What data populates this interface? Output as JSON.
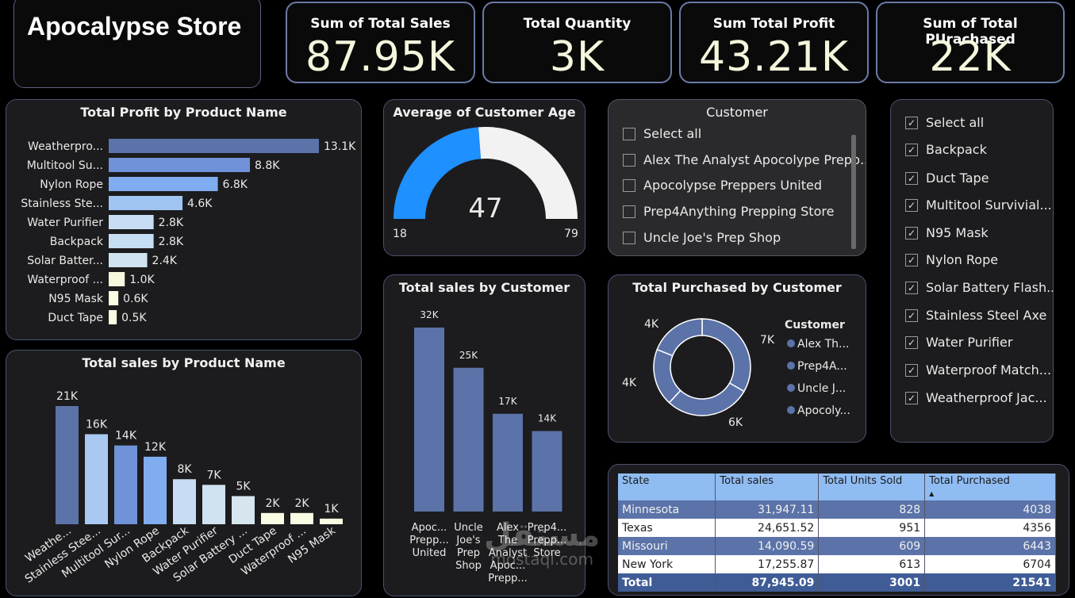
{
  "title": "Apocalypse Store",
  "kpis": [
    {
      "label": "Sum of Total Sales",
      "value": "87.95K"
    },
    {
      "label": "Total Quantity",
      "value": "3K"
    },
    {
      "label": "Sum Total Profit",
      "value": "43.21K"
    },
    {
      "label": "Sum of Total PUrachased",
      "value": "22K"
    }
  ],
  "colors": {
    "accent": "#1e90ff",
    "bar": "#5b73a8",
    "card_bg": "#1c1c1e",
    "border": "#4a5170"
  },
  "profit_panel": {
    "title": "Total Profit by Product Name"
  },
  "sales_product_panel": {
    "title": "Total sales by Product Name"
  },
  "age_panel": {
    "title": "Average of Customer Age"
  },
  "sales_customer_panel": {
    "title": "Total sales by Customer"
  },
  "purchased_panel": {
    "title": "Total Purchased by Customer"
  },
  "customer_slicer": {
    "title": "Customer",
    "items": [
      "Select all",
      "Alex The Analyst Apocolype Prepp...",
      "Apocolypse Preppers United",
      "Prep4Anything Prepping Store",
      "Uncle Joe's Prep Shop"
    ]
  },
  "product_slicer": {
    "items": [
      "Select all",
      "Backpack",
      "Duct Tape",
      "Multitool Survivial...",
      "N95 Mask",
      "Nylon Rope",
      "Solar Battery Flash...",
      "Stainless Steel Axe",
      "Water Purifier",
      "Waterproof Match...",
      "Weatherproof Jac..."
    ]
  },
  "chart_data": [
    {
      "type": "bar",
      "orientation": "horizontal",
      "title": "Total Profit by Product Name",
      "categories": [
        "Weatherpro...",
        "Multitool Su...",
        "Nylon Rope",
        "Stainless Ste...",
        "Water Purifier",
        "Backpack",
        "Solar Batter...",
        "Waterproof ...",
        "N95 Mask",
        "Duct Tape"
      ],
      "values": [
        13.1,
        8.8,
        6.8,
        4.6,
        2.8,
        2.8,
        2.4,
        1.0,
        0.6,
        0.5
      ],
      "labels": [
        "13.1K",
        "8.8K",
        "6.8K",
        "4.6K",
        "2.8K",
        "2.8K",
        "2.4K",
        "1.0K",
        "0.6K",
        "0.5K"
      ],
      "colors": [
        "#5b73a8",
        "#6f92d8",
        "#80adf0",
        "#9fc4f2",
        "#c6ddf3",
        "#c6ddf3",
        "#cfe3f1",
        "#f7f9df",
        "#fbfce4",
        "#fbfce4"
      ]
    },
    {
      "type": "bar",
      "title": "Total sales by Product Name",
      "categories": [
        "Weathe...",
        "Stainless Stee...",
        "Multitool Sur...",
        "Nylon Rope",
        "Backpack",
        "Water Purifier",
        "Solar Battery ...",
        "Duct Tape",
        "Waterproof ...",
        "N95 Mask"
      ],
      "values": [
        21,
        16,
        14,
        12,
        8,
        7,
        5,
        2,
        2,
        1
      ],
      "labels": [
        "21K",
        "16K",
        "14K",
        "12K",
        "8K",
        "7K",
        "5K",
        "2K",
        "2K",
        "1K"
      ],
      "colors": [
        "#5b73a8",
        "#a9c9f3",
        "#6f92d8",
        "#80adf0",
        "#c6ddf3",
        "#cfe3f1",
        "#d6e6ee",
        "#fbfce4",
        "#fbfce4",
        "#fbfce4"
      ]
    },
    {
      "type": "gauge",
      "title": "Average of Customer Age",
      "value": 47,
      "min": 18,
      "max": 79,
      "value_label": "47",
      "min_label": "18",
      "max_label": "79"
    },
    {
      "type": "bar",
      "title": "Total sales by Customer",
      "categories": [
        "Apoc... Prepp... United",
        "Uncle Joe's Prep Shop",
        "Alex The Analyst Apoc... Prepp...",
        "Prep4... Prepp... Store"
      ],
      "category_lines": [
        [
          "Apoc...",
          "Prepp...",
          "United"
        ],
        [
          "Uncle",
          "Joe's",
          "Prep",
          "Shop"
        ],
        [
          "Alex",
          "The",
          "Analyst",
          "Apoc...",
          "Prepp..."
        ],
        [
          "Prep4...",
          "Prepp...",
          "Store"
        ]
      ],
      "values": [
        32,
        25,
        17,
        14
      ],
      "labels": [
        "32K",
        "25K",
        "17K",
        "14K"
      ]
    },
    {
      "type": "pie",
      "donut": true,
      "title": "Total Purchased by Customer",
      "legend_title": "Customer",
      "categories": [
        "Alex Th...",
        "Prep4A...",
        "Uncle J...",
        "Apocoly..."
      ],
      "values": [
        7,
        6,
        4,
        4
      ],
      "labels": [
        "7K",
        "6K",
        "4K",
        "4K"
      ]
    },
    {
      "type": "table",
      "columns": [
        "State",
        "Total sales",
        "Total Units Sold",
        "Total Purchased"
      ],
      "rows": [
        [
          "Minnesota",
          "31,947.11",
          "828",
          "4038"
        ],
        [
          "Texas",
          "24,651.52",
          "951",
          "4356"
        ],
        [
          "Missouri",
          "14,090.59",
          "609",
          "6443"
        ],
        [
          "New York",
          "17,255.87",
          "613",
          "6704"
        ]
      ],
      "total": [
        "Total",
        "87,945.09",
        "3001",
        "21541"
      ]
    }
  ],
  "watermark": {
    "text": "mostaql.com",
    "glyph": "مستقل"
  }
}
